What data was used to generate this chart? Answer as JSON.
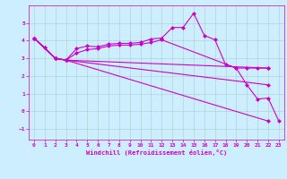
{
  "background_color": "#cceeff",
  "line_color": "#cc00cc",
  "grid_color": "#aacccc",
  "xlabel": "Windchill (Refroidissement éolien,°C)",
  "xlim": [
    -0.5,
    23.5
  ],
  "ylim": [
    -1.6,
    6.0
  ],
  "xticks": [
    0,
    1,
    2,
    3,
    4,
    5,
    6,
    7,
    8,
    9,
    10,
    11,
    12,
    13,
    14,
    15,
    16,
    17,
    18,
    19,
    20,
    21,
    22,
    23
  ],
  "yticks": [
    -1,
    0,
    1,
    2,
    3,
    4,
    5
  ],
  "main_line": {
    "x": [
      0,
      1,
      2,
      3,
      4,
      5,
      6,
      7,
      8,
      9,
      10,
      11,
      12,
      13,
      14,
      15,
      16,
      17,
      18,
      19,
      20,
      21,
      22,
      23
    ],
    "y": [
      4.15,
      3.6,
      3.0,
      2.9,
      3.55,
      3.7,
      3.65,
      3.8,
      3.85,
      3.85,
      3.9,
      4.1,
      4.15,
      4.75,
      4.75,
      5.55,
      4.3,
      4.05,
      2.65,
      2.45,
      1.5,
      0.7,
      0.75,
      -0.55
    ]
  },
  "flat_line": {
    "x": [
      0,
      1,
      2,
      3,
      4,
      5,
      6,
      7,
      8,
      9,
      10,
      11,
      12,
      19,
      20,
      21,
      22
    ],
    "y": [
      4.15,
      3.6,
      3.0,
      2.9,
      3.3,
      3.5,
      3.55,
      3.7,
      3.75,
      3.75,
      3.8,
      3.9,
      4.05,
      2.45,
      2.45,
      2.45,
      2.45
    ]
  },
  "fan_lines": [
    {
      "x": [
        0,
        2,
        3,
        22
      ],
      "y": [
        4.15,
        3.0,
        2.9,
        2.45
      ]
    },
    {
      "x": [
        0,
        2,
        3,
        22
      ],
      "y": [
        4.15,
        3.0,
        2.9,
        1.5
      ]
    },
    {
      "x": [
        0,
        2,
        3,
        22
      ],
      "y": [
        4.15,
        3.0,
        2.9,
        -0.55
      ]
    }
  ],
  "marker": "D",
  "markersize": 2.5,
  "linewidth": 0.8
}
